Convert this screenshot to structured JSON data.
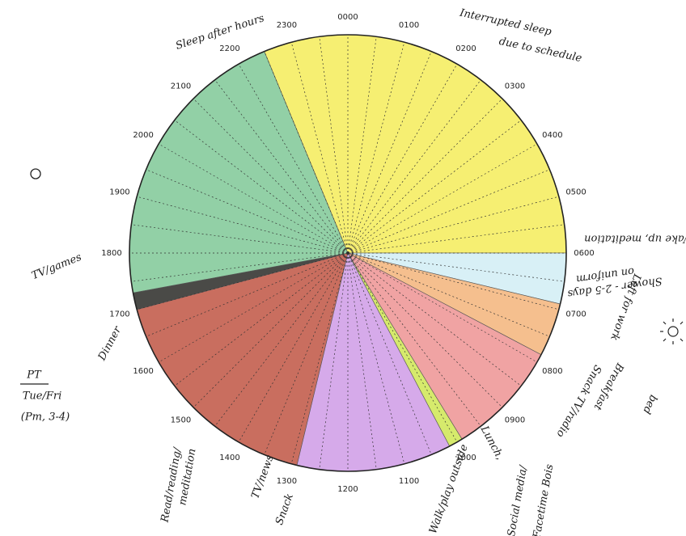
{
  "hours": [
    "0000",
    "0100",
    "0200",
    "0300",
    "0400",
    "0500",
    "0600",
    "0700",
    "0800",
    "0900",
    "1000",
    "1100",
    "1200",
    "1300",
    "1400",
    "1500",
    "1600",
    "1700",
    "1800",
    "1900",
    "2000",
    "2100",
    "2200",
    "2300"
  ],
  "sectors": [
    {
      "start": 22.5,
      "end": 30,
      "color": "#f6ef72"
    },
    {
      "start": 6,
      "end": 6.9,
      "color": "#d8f0f6"
    },
    {
      "start": 6.9,
      "end": 7.85,
      "color": "#f5bf8e"
    },
    {
      "start": 7.85,
      "end": 9.9,
      "color": "#f0a3a3"
    },
    {
      "start": 9.9,
      "end": 10.15,
      "color": "#d6ea6c"
    },
    {
      "start": 10.15,
      "end": 12.9,
      "color": "#d6aaea"
    },
    {
      "start": 12.9,
      "end": 17,
      "color": "#c96e5f"
    },
    {
      "start": 17,
      "end": 17.3,
      "color": "#4a4a47"
    },
    {
      "start": 17.3,
      "end": 22.5,
      "color": "#92d0a6"
    }
  ],
  "notes": {
    "sleep_after": "Sleep after hours",
    "interrupted": "Interrupted sleep",
    "interrupted2": "due to schedule",
    "wake": "Wake up, meditation",
    "shower": "Shower - 2-5 days",
    "shower2": "on uniform",
    "left": "Left for work",
    "breakfast": "Breakfast",
    "snack_am": "Snack",
    "tv_radio": "TV/radio",
    "bed": "bed",
    "lunch": "Lunch,",
    "walk": "Walk/play outside",
    "social": "Social media/",
    "facetime": "Facetime Bois",
    "tv_news": "TV/news",
    "snack_pm": "Snack",
    "read": "Read/reading/",
    "meditation": "meditation",
    "dinner": "Dinner",
    "pt": "PT",
    "pt_days": "Tue/Fri",
    "pt_time": "(Pm, 3-4)",
    "tv_games": "TV/games"
  }
}
